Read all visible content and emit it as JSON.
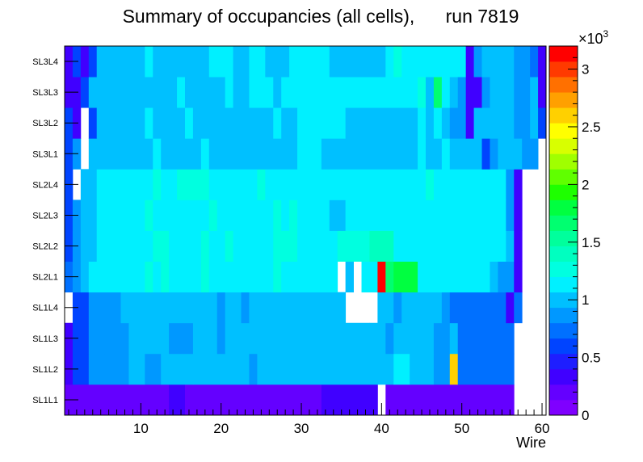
{
  "chart_data": {
    "type": "heatmap",
    "title": "Summary of occupancies (all cells),      run 7819",
    "xlabel": "Wire",
    "ylabel": "",
    "xlim": [
      0.5,
      60.5
    ],
    "x_ticks": [
      10,
      20,
      30,
      40,
      50,
      60
    ],
    "y_categories": [
      "SL1L1",
      "SL1L2",
      "SL1L3",
      "SL1L4",
      "SL2L1",
      "SL2L2",
      "SL2L3",
      "SL2L4",
      "SL3L1",
      "SL3L2",
      "SL3L3",
      "SL3L4"
    ],
    "colorbar": {
      "min": 0,
      "max": 3200,
      "exponent_label": "×10",
      "exponent_power": "3",
      "tick_values": [
        0,
        500,
        1000,
        1500,
        2000,
        2500,
        3000
      ],
      "tick_labels": [
        "0",
        "0.5",
        "1",
        "1.5",
        "2",
        "2.5",
        "3"
      ],
      "palette": [
        "#7f00ff",
        "#6400ff",
        "#4000ff",
        "#1e1eff",
        "#0044ff",
        "#0070ff",
        "#0098ff",
        "#00c0ff",
        "#00f0ff",
        "#00ffe0",
        "#00ffc0",
        "#00ff9c",
        "#00ff70",
        "#00ff40",
        "#1eff00",
        "#60ff00",
        "#a0ff00",
        "#d8ff00",
        "#ffff00",
        "#ffd000",
        "#ffa000",
        "#ff7000",
        "#ff3a00",
        "#ff0000"
      ]
    },
    "rows": [
      {
        "layer": "SL1L1",
        "segments": [
          [
            1,
            13,
            180
          ],
          [
            14,
            15,
            300
          ],
          [
            16,
            32,
            180
          ],
          [
            33,
            39,
            380
          ],
          [
            40,
            40,
            null
          ],
          [
            41,
            56,
            180
          ],
          [
            57,
            60,
            null
          ]
        ]
      },
      {
        "layer": "SL1L2",
        "segments": [
          [
            1,
            1,
            380
          ],
          [
            2,
            3,
            620
          ],
          [
            4,
            5,
            880
          ],
          [
            6,
            8,
            880
          ],
          [
            9,
            10,
            1020
          ],
          [
            11,
            12,
            880
          ],
          [
            13,
            16,
            1020
          ],
          [
            17,
            23,
            1020
          ],
          [
            24,
            24,
            880
          ],
          [
            25,
            41,
            1020
          ],
          [
            42,
            43,
            1170
          ],
          [
            44,
            46,
            1020
          ],
          [
            47,
            48,
            880
          ],
          [
            49,
            49,
            2560
          ],
          [
            50,
            56,
            750
          ],
          [
            57,
            60,
            null
          ]
        ]
      },
      {
        "layer": "SL1L3",
        "segments": [
          [
            1,
            1,
            380
          ],
          [
            2,
            3,
            620
          ],
          [
            4,
            8,
            880
          ],
          [
            9,
            13,
            1020
          ],
          [
            14,
            16,
            880
          ],
          [
            17,
            19,
            1020
          ],
          [
            20,
            20,
            880
          ],
          [
            21,
            38,
            1020
          ],
          [
            39,
            40,
            1020
          ],
          [
            41,
            41,
            880
          ],
          [
            42,
            46,
            1020
          ],
          [
            47,
            48,
            880
          ],
          [
            49,
            49,
            1020
          ],
          [
            50,
            56,
            750
          ],
          [
            57,
            60,
            null
          ]
        ]
      },
      {
        "layer": "SL1L4",
        "segments": [
          [
            1,
            1,
            null
          ],
          [
            2,
            3,
            620
          ],
          [
            4,
            7,
            880
          ],
          [
            8,
            19,
            1020
          ],
          [
            20,
            20,
            880
          ],
          [
            21,
            22,
            1020
          ],
          [
            23,
            23,
            880
          ],
          [
            24,
            35,
            1020
          ],
          [
            36,
            39,
            null
          ],
          [
            40,
            41,
            1020
          ],
          [
            42,
            42,
            880
          ],
          [
            43,
            47,
            1020
          ],
          [
            48,
            48,
            880
          ],
          [
            49,
            55,
            750
          ],
          [
            56,
            56,
            300
          ],
          [
            57,
            57,
            750
          ],
          [
            58,
            60,
            null
          ]
        ]
      },
      {
        "layer": "SL2L1",
        "segments": [
          [
            1,
            1,
            750
          ],
          [
            2,
            2,
            880
          ],
          [
            3,
            3,
            1020
          ],
          [
            4,
            10,
            1160
          ],
          [
            11,
            11,
            1300
          ],
          [
            12,
            12,
            1160
          ],
          [
            13,
            13,
            1300
          ],
          [
            14,
            17,
            1160
          ],
          [
            18,
            18,
            1300
          ],
          [
            19,
            26,
            1160
          ],
          [
            27,
            27,
            1300
          ],
          [
            28,
            34,
            1160
          ],
          [
            35,
            35,
            null
          ],
          [
            36,
            36,
            1020
          ],
          [
            37,
            37,
            null
          ],
          [
            38,
            39,
            1160
          ],
          [
            40,
            40,
            3200
          ],
          [
            41,
            41,
            1700
          ],
          [
            42,
            44,
            1850
          ],
          [
            45,
            53,
            1160
          ],
          [
            54,
            54,
            1020
          ],
          [
            55,
            56,
            880
          ],
          [
            57,
            57,
            380
          ],
          [
            58,
            60,
            null
          ]
        ]
      },
      {
        "layer": "SL2L2",
        "segments": [
          [
            1,
            1,
            620
          ],
          [
            2,
            2,
            880
          ],
          [
            3,
            4,
            1020
          ],
          [
            5,
            11,
            1160
          ],
          [
            12,
            13,
            1300
          ],
          [
            14,
            17,
            1160
          ],
          [
            18,
            18,
            1300
          ],
          [
            19,
            20,
            1160
          ],
          [
            21,
            21,
            1300
          ],
          [
            22,
            26,
            1160
          ],
          [
            27,
            29,
            1300
          ],
          [
            30,
            34,
            1160
          ],
          [
            35,
            38,
            1300
          ],
          [
            39,
            41,
            1450
          ],
          [
            42,
            55,
            1160
          ],
          [
            56,
            56,
            1020
          ],
          [
            57,
            57,
            380
          ],
          [
            58,
            60,
            null
          ]
        ]
      },
      {
        "layer": "SL2L3",
        "segments": [
          [
            1,
            1,
            620
          ],
          [
            2,
            2,
            880
          ],
          [
            3,
            4,
            1020
          ],
          [
            5,
            10,
            1160
          ],
          [
            11,
            11,
            1300
          ],
          [
            12,
            18,
            1160
          ],
          [
            19,
            19,
            1300
          ],
          [
            20,
            26,
            1160
          ],
          [
            27,
            27,
            1300
          ],
          [
            28,
            28,
            1160
          ],
          [
            29,
            29,
            1300
          ],
          [
            30,
            33,
            1160
          ],
          [
            34,
            35,
            1020
          ],
          [
            36,
            55,
            1160
          ],
          [
            56,
            56,
            880
          ],
          [
            57,
            57,
            380
          ],
          [
            58,
            60,
            null
          ]
        ]
      },
      {
        "layer": "SL2L4",
        "segments": [
          [
            1,
            1,
            620
          ],
          [
            2,
            2,
            null
          ],
          [
            3,
            4,
            1020
          ],
          [
            5,
            11,
            1160
          ],
          [
            12,
            12,
            1300
          ],
          [
            13,
            14,
            1160
          ],
          [
            15,
            15,
            1300
          ],
          [
            16,
            18,
            1300
          ],
          [
            19,
            24,
            1160
          ],
          [
            25,
            25,
            1300
          ],
          [
            26,
            45,
            1160
          ],
          [
            46,
            46,
            1300
          ],
          [
            47,
            55,
            1160
          ],
          [
            56,
            56,
            880
          ],
          [
            57,
            57,
            380
          ],
          [
            58,
            60,
            null
          ]
        ]
      },
      {
        "layer": "SL3L1",
        "segments": [
          [
            1,
            1,
            620
          ],
          [
            2,
            2,
            880
          ],
          [
            3,
            3,
            null
          ],
          [
            4,
            11,
            1020
          ],
          [
            12,
            12,
            1160
          ],
          [
            13,
            17,
            1020
          ],
          [
            18,
            18,
            1160
          ],
          [
            19,
            29,
            1020
          ],
          [
            30,
            32,
            1160
          ],
          [
            33,
            44,
            1020
          ],
          [
            45,
            45,
            1160
          ],
          [
            46,
            47,
            1020
          ],
          [
            48,
            48,
            1160
          ],
          [
            49,
            52,
            1020
          ],
          [
            53,
            53,
            620
          ],
          [
            54,
            54,
            880
          ],
          [
            55,
            57,
            1020
          ],
          [
            58,
            59,
            880
          ],
          [
            60,
            60,
            null
          ]
        ]
      },
      {
        "layer": "SL3L2",
        "segments": [
          [
            1,
            1,
            620
          ],
          [
            2,
            2,
            380
          ],
          [
            3,
            3,
            null
          ],
          [
            4,
            4,
            620
          ],
          [
            5,
            10,
            1020
          ],
          [
            11,
            11,
            1160
          ],
          [
            12,
            15,
            1020
          ],
          [
            16,
            16,
            1160
          ],
          [
            17,
            26,
            1020
          ],
          [
            27,
            27,
            1160
          ],
          [
            28,
            29,
            1020
          ],
          [
            30,
            35,
            1160
          ],
          [
            36,
            44,
            1020
          ],
          [
            45,
            45,
            1160
          ],
          [
            46,
            46,
            1020
          ],
          [
            47,
            47,
            1160
          ],
          [
            48,
            48,
            1020
          ],
          [
            49,
            50,
            880
          ],
          [
            51,
            51,
            380
          ],
          [
            52,
            56,
            1020
          ],
          [
            57,
            58,
            880
          ],
          [
            59,
            59,
            1020
          ],
          [
            60,
            60,
            620
          ]
        ]
      },
      {
        "layer": "SL3L3",
        "segments": [
          [
            1,
            2,
            380
          ],
          [
            3,
            3,
            620
          ],
          [
            4,
            14,
            1020
          ],
          [
            15,
            15,
            1160
          ],
          [
            16,
            20,
            1020
          ],
          [
            21,
            21,
            1160
          ],
          [
            22,
            23,
            1020
          ],
          [
            24,
            26,
            1160
          ],
          [
            27,
            27,
            1020
          ],
          [
            28,
            34,
            1160
          ],
          [
            35,
            44,
            1160
          ],
          [
            45,
            45,
            1300
          ],
          [
            46,
            46,
            1020
          ],
          [
            47,
            47,
            1700
          ],
          [
            48,
            48,
            1160
          ],
          [
            49,
            49,
            1020
          ],
          [
            50,
            50,
            880
          ],
          [
            51,
            52,
            380
          ],
          [
            53,
            53,
            880
          ],
          [
            54,
            56,
            1020
          ],
          [
            57,
            58,
            880
          ],
          [
            59,
            59,
            1020
          ],
          [
            60,
            60,
            300
          ]
        ]
      },
      {
        "layer": "SL3L4",
        "segments": [
          [
            1,
            1,
            380
          ],
          [
            2,
            2,
            620
          ],
          [
            3,
            3,
            300
          ],
          [
            4,
            4,
            620
          ],
          [
            5,
            10,
            1020
          ],
          [
            11,
            11,
            1160
          ],
          [
            12,
            18,
            1020
          ],
          [
            19,
            21,
            1160
          ],
          [
            22,
            23,
            1020
          ],
          [
            24,
            25,
            1160
          ],
          [
            26,
            28,
            1020
          ],
          [
            29,
            33,
            1160
          ],
          [
            34,
            40,
            1020
          ],
          [
            41,
            41,
            1160
          ],
          [
            42,
            42,
            1300
          ],
          [
            43,
            50,
            1160
          ],
          [
            51,
            51,
            300
          ],
          [
            52,
            52,
            880
          ],
          [
            53,
            56,
            1020
          ],
          [
            57,
            58,
            880
          ],
          [
            59,
            59,
            750
          ],
          [
            60,
            60,
            380
          ]
        ]
      }
    ]
  }
}
